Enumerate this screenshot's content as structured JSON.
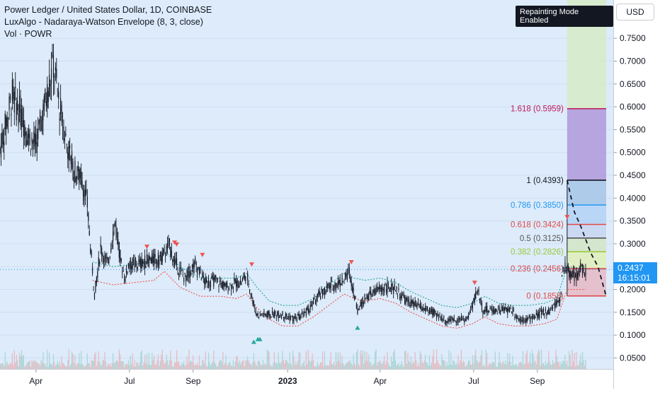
{
  "header": {
    "symbol_line": "Power Ledger / United States Dollar, 1D, COINBASE",
    "indicator_line": "LuxAlgo - Nadaraya-Watson Envelope (8, 3, close)",
    "volume_line": "Vol · POWR",
    "repaint_badge": "Repainting Mode Enabled"
  },
  "axis": {
    "currency": "USD",
    "last_price": "0.2437",
    "countdown": "16:15:01"
  },
  "colors": {
    "plot_bg": "#ddebfa",
    "candle": "#131722",
    "env_upper": "#26a69a",
    "env_lower": "#ef5350",
    "arrow_down": "#ef5350",
    "arrow_up": "#26a69a",
    "price_line": "#2196f3"
  },
  "chart_data": {
    "type": "line",
    "title": "Power Ledger / United States Dollar, 1D, COINBASE",
    "xlabel": "",
    "ylabel": "",
    "ylim": [
      0.0,
      0.8
    ],
    "y_ticks": [
      "0.7500",
      "0.7000",
      "0.6500",
      "0.6000",
      "0.5500",
      "0.5000",
      "0.4500",
      "0.4000",
      "0.3500",
      "0.3000",
      "0.2500",
      "0.2000",
      "0.1500",
      "0.1000",
      "0.0500"
    ],
    "x_ticks": [
      {
        "label": "Apr",
        "i": 35,
        "bold": false
      },
      {
        "label": "Jul",
        "i": 126,
        "bold": false
      },
      {
        "label": "Sep",
        "i": 188,
        "bold": false
      },
      {
        "label": "2023",
        "i": 280,
        "bold": true
      },
      {
        "label": "Apr",
        "i": 370,
        "bold": false
      },
      {
        "label": "Jul",
        "i": 461,
        "bold": false
      },
      {
        "label": "Sep",
        "i": 523,
        "bold": false
      }
    ],
    "x_domain": [
      0,
      590
    ],
    "series": [
      {
        "values": [
          [
            0,
            0.5,
            0.51
          ],
          [
            12,
            0.61,
            0.64
          ],
          [
            22,
            0.55,
            0.6
          ],
          [
            28,
            0.52,
            0.55
          ],
          [
            35,
            0.5,
            0.53
          ],
          [
            45,
            0.6,
            0.64
          ],
          [
            52,
            0.66,
            0.73
          ],
          [
            58,
            0.6,
            0.6
          ],
          [
            65,
            0.52,
            0.52
          ],
          [
            72,
            0.46,
            0.46
          ],
          [
            80,
            0.44,
            0.44
          ],
          [
            85,
            0.36,
            0.41
          ],
          [
            88,
            0.27,
            0.32
          ],
          [
            92,
            0.22,
            0.16
          ],
          [
            98,
            0.27,
            0.31
          ],
          [
            105,
            0.24,
            0.27
          ],
          [
            112,
            0.31,
            0.39
          ],
          [
            118,
            0.24,
            0.27
          ],
          [
            122,
            0.21,
            0.24
          ],
          [
            125,
            0.24,
            0.27
          ],
          [
            135,
            0.24,
            0.27
          ],
          [
            145,
            0.25,
            0.28
          ],
          [
            155,
            0.26,
            0.27
          ],
          [
            165,
            0.29,
            0.3
          ],
          [
            170,
            0.25,
            0.27
          ],
          [
            180,
            0.23,
            0.22
          ],
          [
            190,
            0.23,
            0.28
          ],
          [
            200,
            0.21,
            0.22
          ],
          [
            210,
            0.21,
            0.23
          ],
          [
            220,
            0.2,
            0.21
          ],
          [
            230,
            0.21,
            0.22
          ],
          [
            235,
            0.21,
            0.22
          ],
          [
            240,
            0.23,
            0.24
          ],
          [
            245,
            0.19,
            0.18
          ],
          [
            250,
            0.14,
            0.15
          ],
          [
            258,
            0.14,
            0.15
          ],
          [
            265,
            0.14,
            0.15
          ],
          [
            275,
            0.14,
            0.15
          ],
          [
            285,
            0.13,
            0.14
          ],
          [
            292,
            0.14,
            0.14
          ],
          [
            300,
            0.15,
            0.16
          ],
          [
            310,
            0.18,
            0.19
          ],
          [
            320,
            0.2,
            0.21
          ],
          [
            330,
            0.21,
            0.22
          ],
          [
            335,
            0.21,
            0.23
          ],
          [
            340,
            0.22,
            0.26
          ],
          [
            348,
            0.15,
            0.16
          ],
          [
            355,
            0.17,
            0.19
          ],
          [
            365,
            0.19,
            0.2
          ],
          [
            375,
            0.2,
            0.21
          ],
          [
            385,
            0.19,
            0.21
          ],
          [
            395,
            0.17,
            0.18
          ],
          [
            405,
            0.16,
            0.17
          ],
          [
            415,
            0.15,
            0.16
          ],
          [
            425,
            0.14,
            0.15
          ],
          [
            435,
            0.13,
            0.13
          ],
          [
            445,
            0.13,
            0.14
          ],
          [
            455,
            0.13,
            0.14
          ],
          [
            465,
            0.16,
            0.24
          ],
          [
            470,
            0.15,
            0.16
          ],
          [
            480,
            0.15,
            0.16
          ],
          [
            490,
            0.15,
            0.16
          ],
          [
            498,
            0.14,
            0.17
          ],
          [
            505,
            0.13,
            0.14
          ],
          [
            515,
            0.13,
            0.14
          ],
          [
            525,
            0.14,
            0.15
          ],
          [
            535,
            0.15,
            0.16
          ],
          [
            540,
            0.16,
            0.17
          ],
          [
            545,
            0.17,
            0.19
          ],
          [
            548,
            0.21,
            0.28
          ],
          [
            552,
            0.24,
            0.25
          ],
          [
            556,
            0.22,
            0.25
          ],
          [
            560,
            0.22,
            0.24
          ],
          [
            565,
            0.24,
            0.25
          ],
          [
            570,
            0.24,
            0.24
          ]
        ]
      },
      {
        "name": "",
        "values": []
      }
    ],
    "envelope_upper": [
      [
        90,
        0.26
      ],
      [
        110,
        0.25
      ],
      [
        130,
        0.255
      ],
      [
        150,
        0.26
      ],
      [
        160,
        0.285
      ],
      [
        175,
        0.25
      ],
      [
        195,
        0.225
      ],
      [
        215,
        0.225
      ],
      [
        230,
        0.225
      ],
      [
        240,
        0.235
      ],
      [
        250,
        0.205
      ],
      [
        262,
        0.175
      ],
      [
        275,
        0.165
      ],
      [
        290,
        0.165
      ],
      [
        305,
        0.18
      ],
      [
        320,
        0.21
      ],
      [
        335,
        0.235
      ],
      [
        345,
        0.225
      ],
      [
        355,
        0.22
      ],
      [
        370,
        0.225
      ],
      [
        385,
        0.215
      ],
      [
        400,
        0.195
      ],
      [
        415,
        0.18
      ],
      [
        430,
        0.165
      ],
      [
        445,
        0.16
      ],
      [
        460,
        0.17
      ],
      [
        472,
        0.185
      ],
      [
        485,
        0.17
      ],
      [
        500,
        0.165
      ],
      [
        515,
        0.165
      ],
      [
        530,
        0.17
      ],
      [
        542,
        0.18
      ],
      [
        552,
        0.25
      ],
      [
        570,
        0.245
      ]
    ],
    "envelope_lower": [
      [
        90,
        0.22
      ],
      [
        110,
        0.21
      ],
      [
        130,
        0.215
      ],
      [
        150,
        0.22
      ],
      [
        160,
        0.24
      ],
      [
        175,
        0.205
      ],
      [
        195,
        0.185
      ],
      [
        215,
        0.185
      ],
      [
        230,
        0.18
      ],
      [
        240,
        0.19
      ],
      [
        250,
        0.16
      ],
      [
        262,
        0.135
      ],
      [
        275,
        0.12
      ],
      [
        290,
        0.12
      ],
      [
        305,
        0.14
      ],
      [
        320,
        0.165
      ],
      [
        335,
        0.19
      ],
      [
        345,
        0.18
      ],
      [
        355,
        0.175
      ],
      [
        370,
        0.18
      ],
      [
        385,
        0.17
      ],
      [
        400,
        0.15
      ],
      [
        415,
        0.135
      ],
      [
        430,
        0.12
      ],
      [
        445,
        0.115
      ],
      [
        460,
        0.125
      ],
      [
        472,
        0.14
      ],
      [
        485,
        0.125
      ],
      [
        500,
        0.12
      ],
      [
        515,
        0.12
      ],
      [
        530,
        0.125
      ],
      [
        542,
        0.135
      ],
      [
        552,
        0.2
      ],
      [
        570,
        0.2
      ]
    ],
    "arrows_down": [
      [
        143,
        0.292
      ],
      [
        170,
        0.301
      ],
      [
        172,
        0.297
      ],
      [
        197,
        0.274
      ],
      [
        245,
        0.253
      ],
      [
        342,
        0.258
      ],
      [
        462,
        0.213
      ],
      [
        552,
        0.357
      ]
    ],
    "arrows_up": [
      [
        247,
        0.087
      ],
      [
        251,
        0.093
      ],
      [
        253,
        0.093
      ],
      [
        348,
        0.118
      ]
    ],
    "fibonacci": {
      "x_start": 552,
      "x_end": 590,
      "levels": [
        {
          "label": "1.618 (0.5959)",
          "value": 0.5959,
          "color": "#c2185b",
          "fill": "#b39ddb"
        },
        {
          "label": "1 (0.4393)",
          "value": 0.4393,
          "color": "#131722",
          "fill": "#a8c8e8"
        },
        {
          "label": "0.786 (0.3850)",
          "value": 0.385,
          "color": "#2196f3",
          "fill": "#b6d4f5"
        },
        {
          "label": "0.618 (0.3424)",
          "value": 0.3424,
          "color": "#e04848",
          "fill": "#c8d7ef"
        },
        {
          "label": "0.5 (0.3125)",
          "value": 0.3125,
          "color": "#555555",
          "fill": "#d3e6c8"
        },
        {
          "label": "0.382 (0.2826)",
          "value": 0.2826,
          "color": "#9dc83c",
          "fill": "#e0eebd"
        },
        {
          "label": "0.236 (0.2456)",
          "value": 0.2456,
          "color": "#e04848",
          "fill": "#e6bcc8"
        },
        {
          "label": "0 (0.1858)",
          "value": 0.1858,
          "color": "#e04848",
          "fill": "#e6bcc8"
        }
      ],
      "top_fill": "#d6ebc6",
      "dashed_path": [
        [
          552,
          0.4393
        ],
        [
          559,
          0.37
        ],
        [
          565,
          0.34
        ],
        [
          575,
          0.28
        ],
        [
          582,
          0.25
        ],
        [
          590,
          0.185
        ]
      ]
    },
    "last_price_value": 0.2437
  }
}
